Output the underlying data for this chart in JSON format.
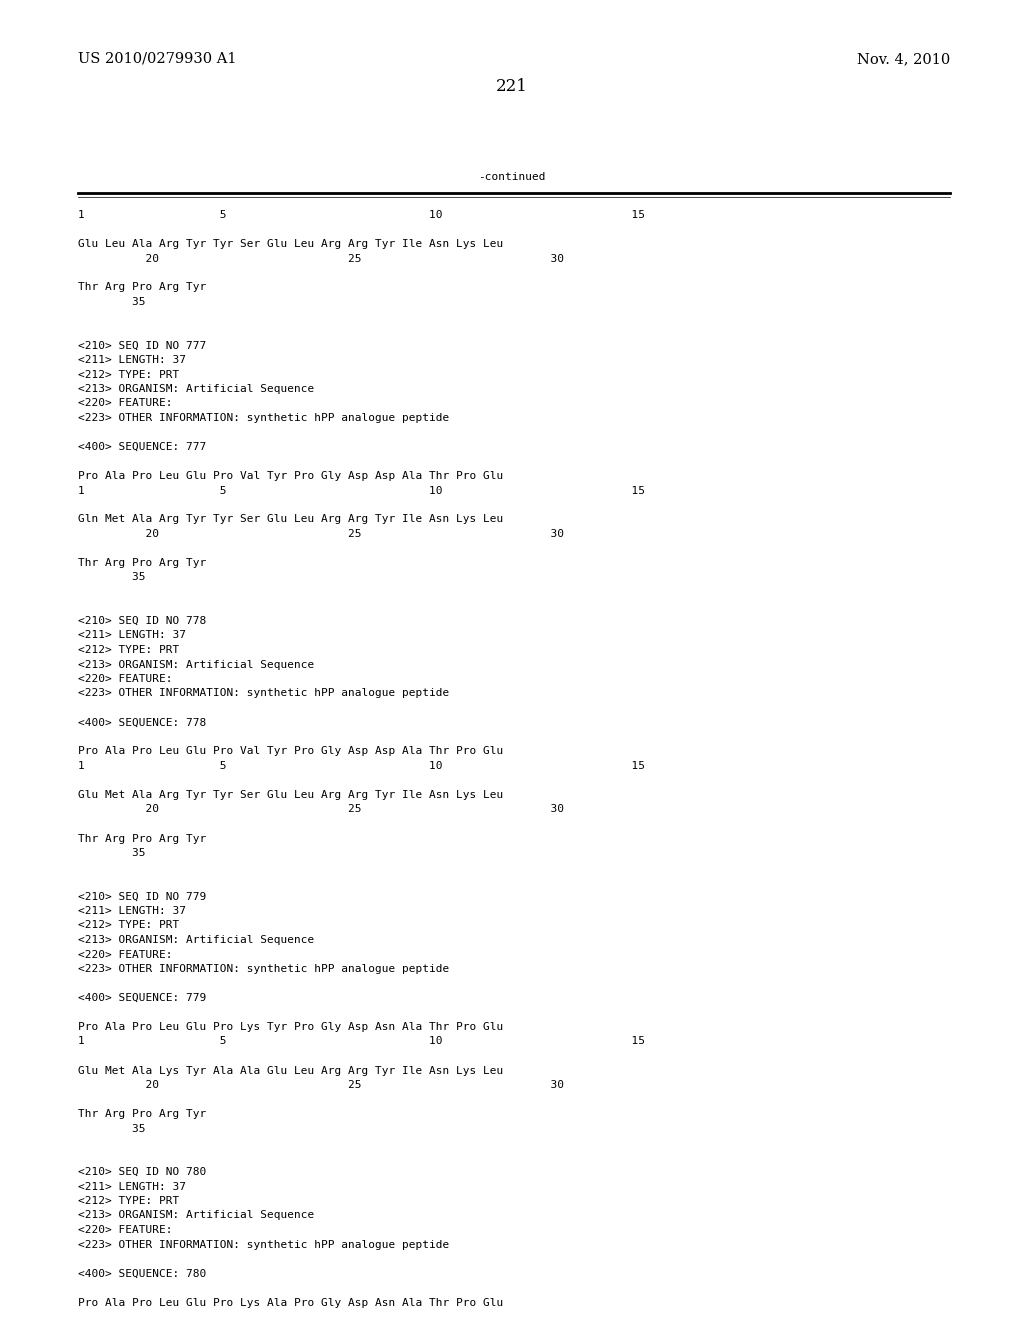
{
  "header_left": "US 2010/0279930 A1",
  "header_right": "Nov. 4, 2010",
  "page_number": "221",
  "continued_label": "-continued",
  "background_color": "#ffffff",
  "text_color": "#000000",
  "font_size_header": 10.5,
  "font_size_page": 12,
  "font_size_mono": 8.0,
  "monospace_font": "DejaVu Sans Mono",
  "serif_font": "DejaVu Serif",
  "content_lines": [
    "1                    5                              10                            15",
    "",
    "Glu Leu Ala Arg Tyr Tyr Ser Glu Leu Arg Arg Tyr Ile Asn Lys Leu",
    "          20                            25                            30",
    "",
    "Thr Arg Pro Arg Tyr",
    "        35",
    "",
    "",
    "<210> SEQ ID NO 777",
    "<211> LENGTH: 37",
    "<212> TYPE: PRT",
    "<213> ORGANISM: Artificial Sequence",
    "<220> FEATURE:",
    "<223> OTHER INFORMATION: synthetic hPP analogue peptide",
    "",
    "<400> SEQUENCE: 777",
    "",
    "Pro Ala Pro Leu Glu Pro Val Tyr Pro Gly Asp Asp Ala Thr Pro Glu",
    "1                    5                              10                            15",
    "",
    "Gln Met Ala Arg Tyr Tyr Ser Glu Leu Arg Arg Tyr Ile Asn Lys Leu",
    "          20                            25                            30",
    "",
    "Thr Arg Pro Arg Tyr",
    "        35",
    "",
    "",
    "<210> SEQ ID NO 778",
    "<211> LENGTH: 37",
    "<212> TYPE: PRT",
    "<213> ORGANISM: Artificial Sequence",
    "<220> FEATURE:",
    "<223> OTHER INFORMATION: synthetic hPP analogue peptide",
    "",
    "<400> SEQUENCE: 778",
    "",
    "Pro Ala Pro Leu Glu Pro Val Tyr Pro Gly Asp Asp Ala Thr Pro Glu",
    "1                    5                              10                            15",
    "",
    "Glu Met Ala Arg Tyr Tyr Ser Glu Leu Arg Arg Tyr Ile Asn Lys Leu",
    "          20                            25                            30",
    "",
    "Thr Arg Pro Arg Tyr",
    "        35",
    "",
    "",
    "<210> SEQ ID NO 779",
    "<211> LENGTH: 37",
    "<212> TYPE: PRT",
    "<213> ORGANISM: Artificial Sequence",
    "<220> FEATURE:",
    "<223> OTHER INFORMATION: synthetic hPP analogue peptide",
    "",
    "<400> SEQUENCE: 779",
    "",
    "Pro Ala Pro Leu Glu Pro Lys Tyr Pro Gly Asp Asn Ala Thr Pro Glu",
    "1                    5                              10                            15",
    "",
    "Glu Met Ala Lys Tyr Ala Ala Glu Leu Arg Arg Tyr Ile Asn Lys Leu",
    "          20                            25                            30",
    "",
    "Thr Arg Pro Arg Tyr",
    "        35",
    "",
    "",
    "<210> SEQ ID NO 780",
    "<211> LENGTH: 37",
    "<212> TYPE: PRT",
    "<213> ORGANISM: Artificial Sequence",
    "<220> FEATURE:",
    "<223> OTHER INFORMATION: synthetic hPP analogue peptide",
    "",
    "<400> SEQUENCE: 780",
    "",
    "Pro Ala Pro Leu Glu Pro Lys Ala Pro Gly Asp Asn Ala Thr Pro Glu"
  ]
}
